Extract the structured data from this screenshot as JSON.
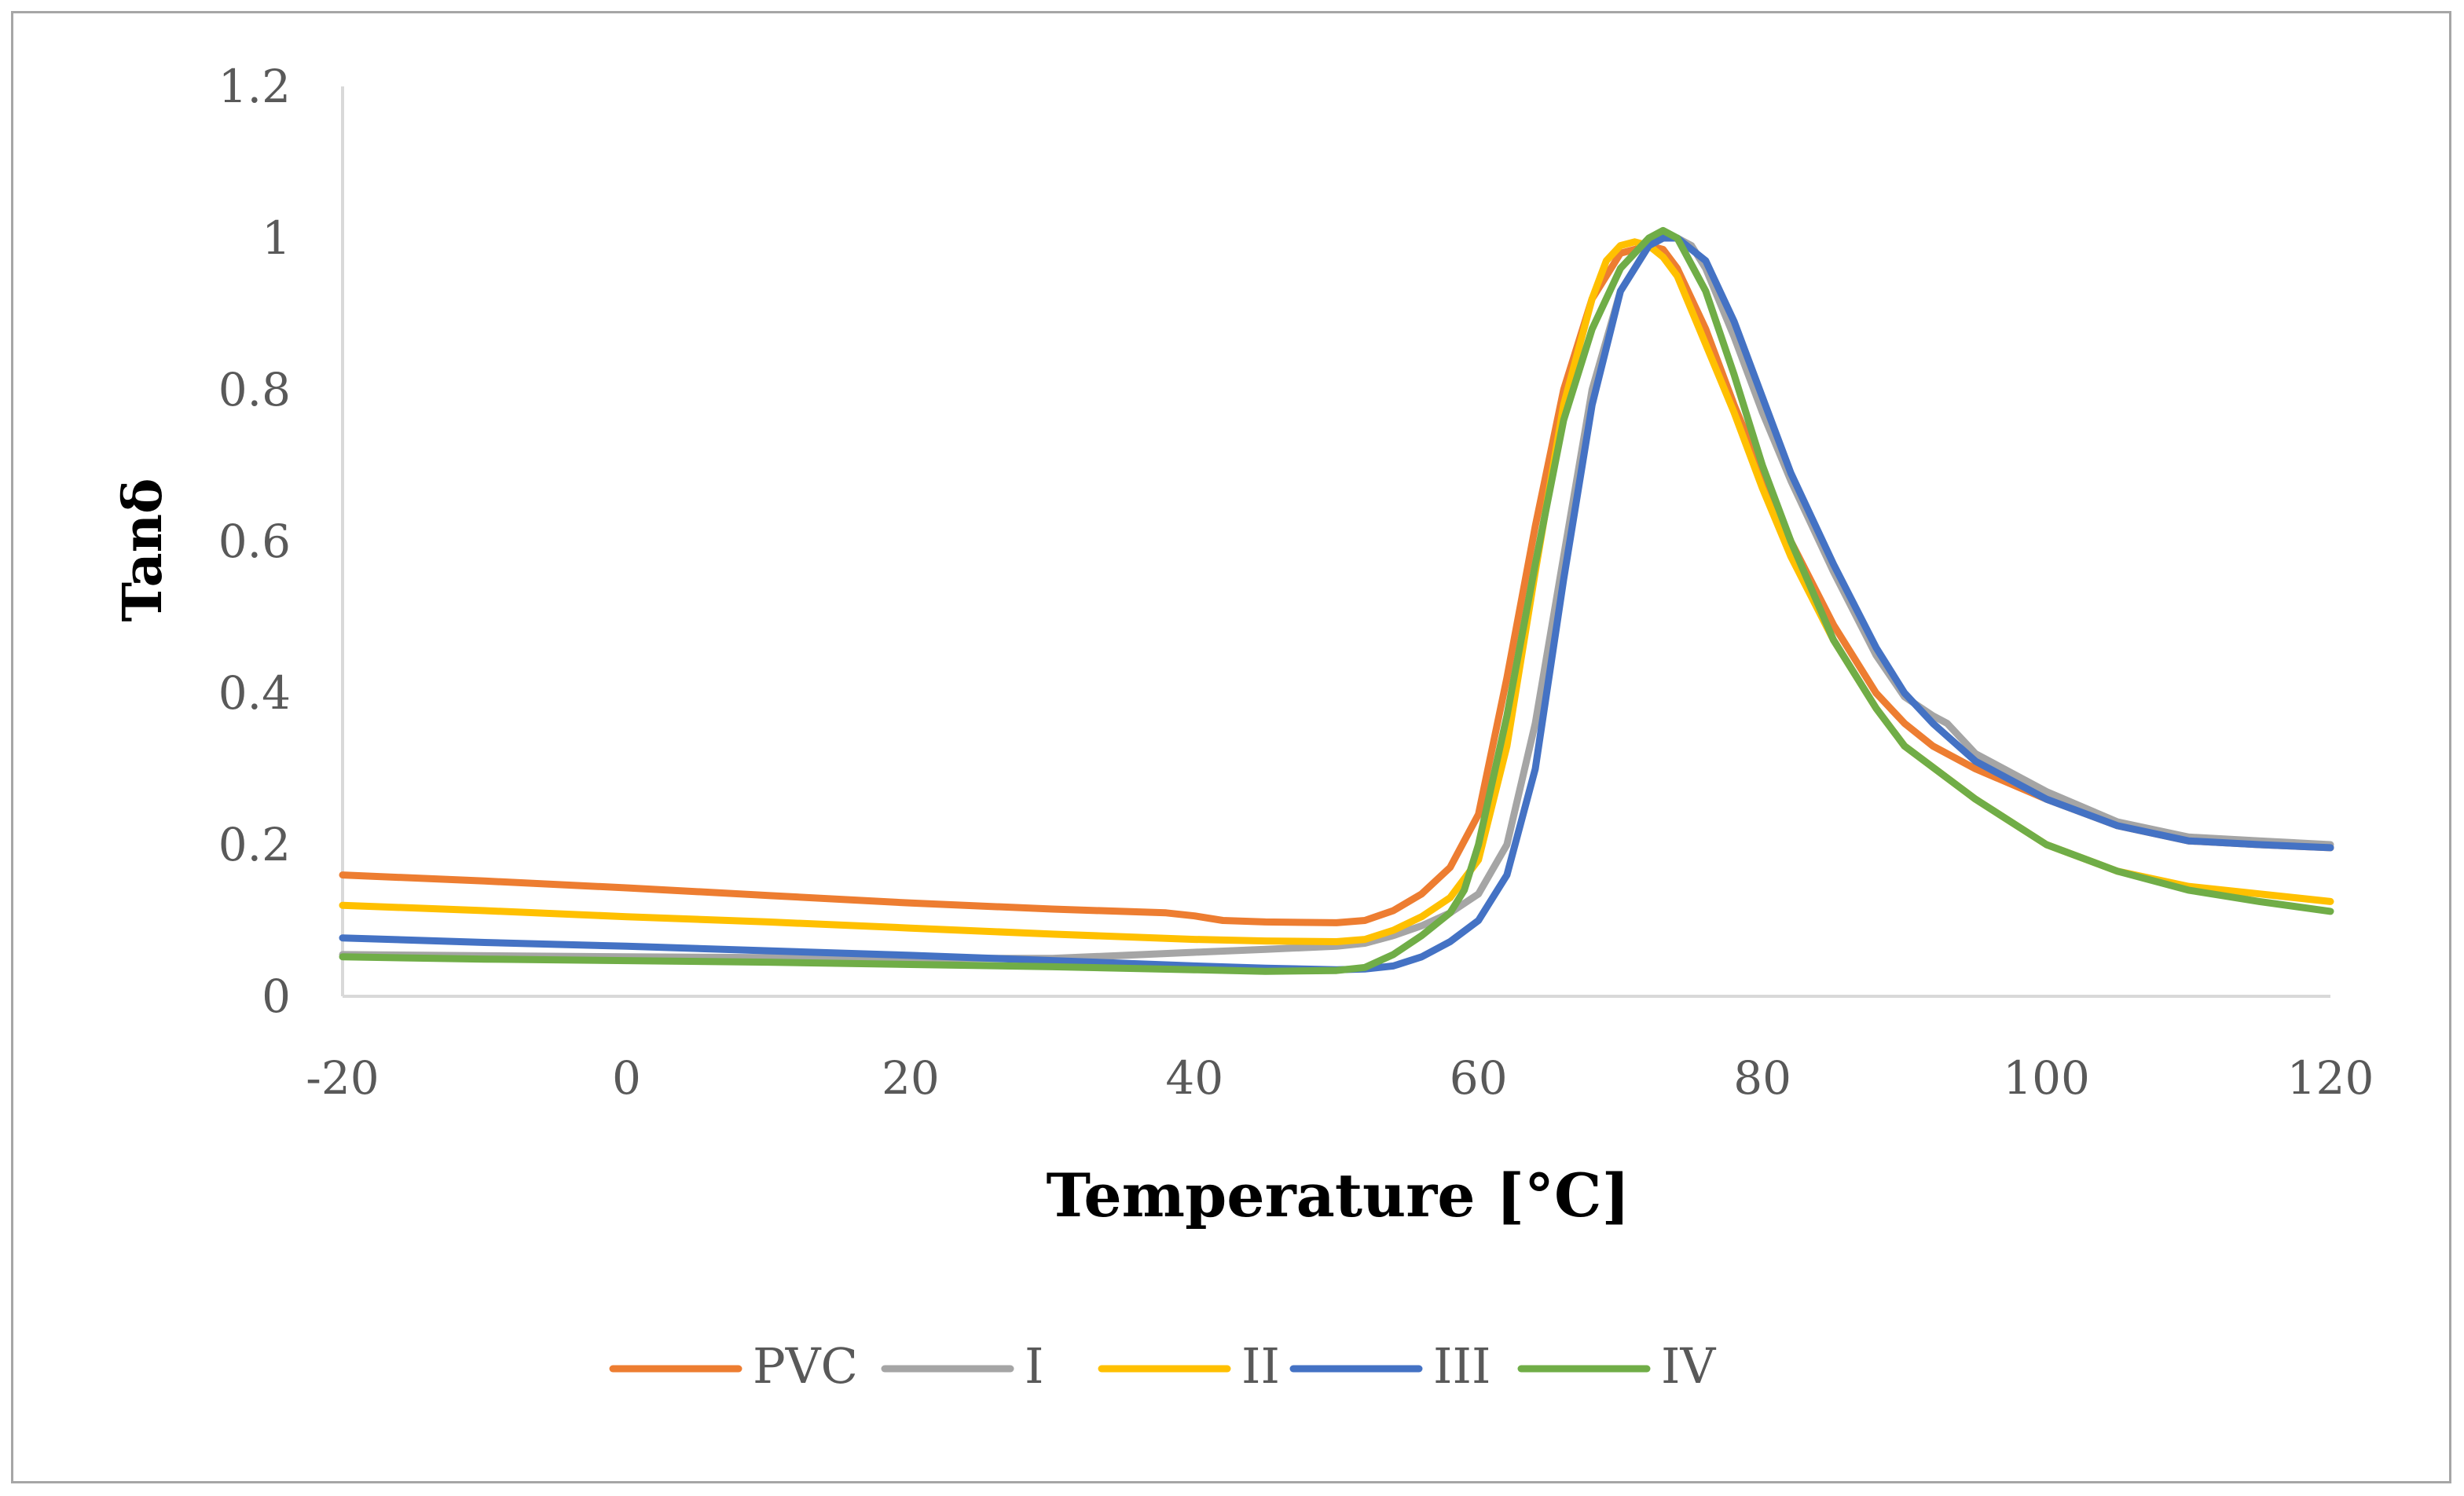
{
  "chart_data": {
    "type": "line",
    "title": "",
    "xlabel": "Temperature [°C]",
    "ylabel": "Tanδ",
    "xlim": [
      -20,
      120
    ],
    "ylim": [
      0,
      1.2
    ],
    "x_ticks": [
      -20,
      0,
      20,
      40,
      60,
      80,
      100,
      120
    ],
    "y_ticks": [
      0,
      0.2,
      0.4,
      0.6,
      0.8,
      1,
      1.2
    ],
    "x_tick_labels": [
      "-20",
      "0",
      "20",
      "40",
      "60",
      "80",
      "100",
      "120"
    ],
    "y_tick_labels": [
      "0",
      "0.2",
      "0.4",
      "0.6",
      "0.8",
      "1",
      "1.2"
    ],
    "grid": false,
    "legend_position": "bottom",
    "series": [
      {
        "name": "PVC",
        "color": "#ED7D31",
        "x": [
          -20,
          -10,
          0,
          10,
          20,
          30,
          38,
          40,
          42,
          45,
          50,
          52,
          54,
          56,
          58,
          60,
          62,
          64,
          66,
          68,
          70,
          71,
          72,
          73,
          74,
          76,
          78,
          80,
          82,
          85,
          88,
          90,
          92,
          95,
          100,
          105,
          110,
          115,
          120
        ],
        "y": [
          0.16,
          0.152,
          0.143,
          0.133,
          0.123,
          0.115,
          0.11,
          0.106,
          0.1,
          0.098,
          0.097,
          0.1,
          0.113,
          0.135,
          0.17,
          0.24,
          0.42,
          0.62,
          0.8,
          0.92,
          0.98,
          0.985,
          0.99,
          0.985,
          0.96,
          0.88,
          0.78,
          0.69,
          0.6,
          0.49,
          0.4,
          0.36,
          0.33,
          0.3,
          0.26,
          0.225,
          0.205,
          0.2,
          0.196
        ]
      },
      {
        "name": "I",
        "color": "#A5A5A5",
        "x": [
          -20,
          0,
          20,
          30,
          40,
          45,
          50,
          52,
          54,
          56,
          58,
          60,
          62,
          64,
          66,
          68,
          70,
          72,
          73,
          74,
          75,
          76,
          78,
          80,
          82,
          85,
          88,
          90,
          92,
          93,
          95,
          100,
          105,
          110,
          115,
          120
        ],
        "y": [
          0.055,
          0.052,
          0.05,
          0.05,
          0.058,
          0.062,
          0.066,
          0.07,
          0.08,
          0.093,
          0.11,
          0.135,
          0.2,
          0.36,
          0.58,
          0.8,
          0.93,
          0.99,
          1.0,
          1.0,
          0.99,
          0.96,
          0.87,
          0.77,
          0.68,
          0.56,
          0.45,
          0.395,
          0.37,
          0.36,
          0.32,
          0.27,
          0.23,
          0.21,
          0.205,
          0.2
        ]
      },
      {
        "name": "II",
        "color": "#FFC000",
        "x": [
          -20,
          -10,
          0,
          10,
          20,
          30,
          40,
          45,
          50,
          52,
          54,
          56,
          58,
          60,
          62,
          64,
          66,
          68,
          69,
          70,
          71,
          72,
          73,
          74,
          76,
          78,
          80,
          82,
          85,
          88,
          90,
          95,
          100,
          105,
          110,
          115,
          120
        ],
        "y": [
          0.12,
          0.113,
          0.105,
          0.098,
          0.09,
          0.082,
          0.075,
          0.073,
          0.072,
          0.075,
          0.087,
          0.105,
          0.13,
          0.18,
          0.33,
          0.56,
          0.78,
          0.92,
          0.97,
          0.99,
          0.995,
          0.99,
          0.975,
          0.95,
          0.86,
          0.77,
          0.67,
          0.58,
          0.47,
          0.38,
          0.33,
          0.26,
          0.2,
          0.165,
          0.145,
          0.135,
          0.125
        ]
      },
      {
        "name": "III",
        "color": "#4472C4",
        "x": [
          -20,
          -10,
          0,
          10,
          20,
          30,
          40,
          45,
          50,
          52,
          54,
          56,
          58,
          60,
          62,
          64,
          66,
          68,
          70,
          72,
          73,
          74,
          76,
          78,
          80,
          82,
          85,
          88,
          90,
          92,
          95,
          100,
          105,
          110,
          115,
          120
        ],
        "y": [
          0.077,
          0.071,
          0.066,
          0.06,
          0.054,
          0.047,
          0.04,
          0.037,
          0.035,
          0.036,
          0.04,
          0.052,
          0.072,
          0.1,
          0.16,
          0.3,
          0.55,
          0.78,
          0.93,
          0.99,
          1.0,
          1.0,
          0.97,
          0.89,
          0.79,
          0.69,
          0.57,
          0.46,
          0.4,
          0.36,
          0.31,
          0.26,
          0.225,
          0.205,
          0.2,
          0.196
        ]
      },
      {
        "name": "IV",
        "color": "#70AD47",
        "x": [
          -20,
          -10,
          0,
          10,
          20,
          30,
          40,
          45,
          50,
          52,
          54,
          56,
          58,
          59,
          60,
          62,
          64,
          66,
          68,
          70,
          72,
          73,
          74,
          76,
          78,
          80,
          82,
          85,
          88,
          90,
          95,
          100,
          105,
          110,
          115,
          120
        ],
        "y": [
          0.052,
          0.049,
          0.047,
          0.045,
          0.042,
          0.039,
          0.035,
          0.033,
          0.034,
          0.038,
          0.055,
          0.08,
          0.11,
          0.14,
          0.2,
          0.37,
          0.57,
          0.76,
          0.88,
          0.96,
          1.0,
          1.01,
          1.0,
          0.93,
          0.82,
          0.7,
          0.6,
          0.47,
          0.38,
          0.33,
          0.26,
          0.2,
          0.165,
          0.14,
          0.125,
          0.112
        ]
      }
    ]
  }
}
